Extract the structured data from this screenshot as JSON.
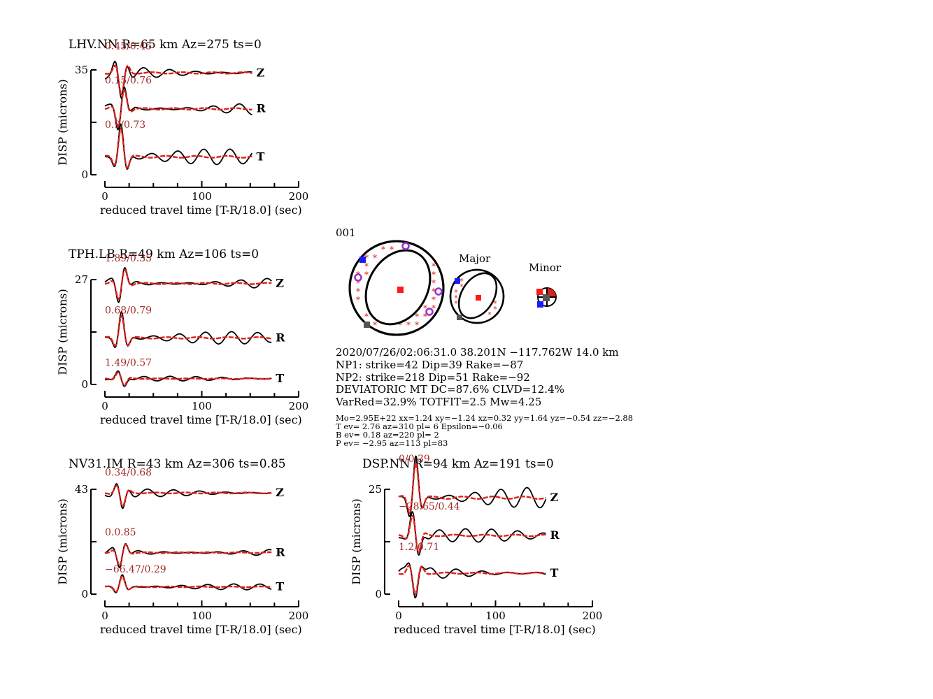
{
  "colors": {
    "observed": "#000000",
    "synthetic": "#e0201b",
    "annotation": "#a52a2a",
    "t_axis": "#1a1aff",
    "p_axis": "#ff1a1a",
    "b_axis": "#555555",
    "pol": "#9932cc"
  },
  "chart_data": [
    {
      "type": "line",
      "title": "LHV.NN R=65 km Az=275 ts=0",
      "xlabel": "reduced travel time [T-R/18.0] (sec)",
      "ylabel": "DISP (microns)",
      "xlim": [
        0,
        200
      ],
      "xticks": [
        "0",
        "100",
        "200"
      ],
      "ylim": [
        0,
        35
      ],
      "yticks": [
        "0",
        "35"
      ],
      "series": [
        {
          "name": "Z",
          "annotation": "0.45/0.45",
          "baseline": 34,
          "amplitude": 2.0,
          "end": 152
        },
        {
          "name": "R",
          "annotation": "0.15/0.76",
          "baseline": 22,
          "amplitude": 2.2,
          "end": 152
        },
        {
          "name": "T",
          "annotation": "0.9/0.73",
          "baseline": 6,
          "amplitude": 2.6,
          "end": 152
        }
      ]
    },
    {
      "type": "line",
      "title": "TPH.LB R=49 km Az=106 ts=0",
      "xlabel": "reduced travel time [T-R/18.0] (sec)",
      "ylabel": "DISP (microns)",
      "xlim": [
        0,
        200
      ],
      "xticks": [
        "0",
        "100",
        "200"
      ],
      "ylim": [
        0,
        27
      ],
      "yticks": [
        "0",
        "27"
      ],
      "series": [
        {
          "name": "Z",
          "annotation": "1.89/0.35",
          "baseline": 26,
          "amplitude": 1.4,
          "end": 172
        },
        {
          "name": "R",
          "annotation": "0.68/0.79",
          "baseline": 12,
          "amplitude": 1.6,
          "end": 172
        },
        {
          "name": "T",
          "annotation": "1.49/0.57",
          "baseline": 1.5,
          "amplitude": 0.6,
          "end": 172
        }
      ]
    },
    {
      "type": "line",
      "title": "NV31.IM R=43 km Az=306 ts=0.85",
      "xlabel": "reduced travel time [T-R/18.0] (sec)",
      "ylabel": "DISP (microns)",
      "xlim": [
        0,
        200
      ],
      "xticks": [
        "0",
        "100",
        "200"
      ],
      "ylim": [
        0,
        43
      ],
      "yticks": [
        "0",
        "43"
      ],
      "series": [
        {
          "name": "Z",
          "annotation": "0.34/0.68",
          "baseline": 41.5,
          "amplitude": 1.6,
          "end": 172
        },
        {
          "name": "R",
          "annotation": "0.0.85",
          "baseline": 17,
          "amplitude": 1.6,
          "end": 172
        },
        {
          "name": "T",
          "annotation": "−66.47/0.29",
          "baseline": 3,
          "amplitude": 1.2,
          "end": 172
        }
      ]
    },
    {
      "type": "line",
      "title": "DSP.NN R=94 km Az=191 ts=0",
      "xlabel": "reduced travel time [T-R/18.0] (sec)",
      "ylabel": "DISP (microns)",
      "xlim": [
        0,
        200
      ],
      "xticks": [
        "0",
        "100",
        "200"
      ],
      "ylim": [
        0,
        25
      ],
      "yticks": [
        "0",
        "25"
      ],
      "series": [
        {
          "name": "Z",
          "annotation": "0/0.39",
          "baseline": 23,
          "amplitude": 2.4,
          "end": 152
        },
        {
          "name": "R",
          "annotation": "−28.65/0.44",
          "baseline": 14,
          "amplitude": 1.6,
          "end": 152
        },
        {
          "name": "T",
          "annotation": "1.2/0.71",
          "baseline": 5,
          "amplitude": 1.4,
          "end": 152
        }
      ]
    }
  ],
  "solution": {
    "id": "001",
    "major_label": "Major",
    "minor_label": "Minor",
    "lines": [
      "2020/07/26/02:06:31.0 38.201N −117.762W 14.0 km",
      "NP1: strike=42 Dip=39 Rake=−87",
      "NP2: strike=218 Dip=51 Rake=−92",
      "DEVIATORIC MT DC=87.6% CLVD=12.4%",
      "VarRed=32.9% TOTFIT=2.5 Mw=4.25"
    ],
    "details": [
      "Mo=2.95E+22 xx=1.24 xy=−1.24 xz=0.32 yy=1.64 yz=−0.54 zz=−2.88",
      "T ev=  2.76 az=310 pl= 6 Epsilon=−0.06",
      "B ev=  0.18 az=220 pl= 2",
      "P ev= −2.95 az=113 pl=83"
    ]
  }
}
